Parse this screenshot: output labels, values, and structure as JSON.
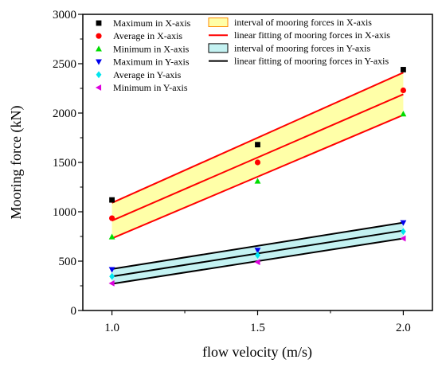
{
  "chart_data": {
    "type": "line",
    "xlabel": "flow velocity (m/s)",
    "ylabel": "Mooring force (kN)",
    "xlim": [
      0.9,
      2.1
    ],
    "ylim": [
      0,
      3000
    ],
    "x_ticks": [
      1.0,
      1.5,
      2.0
    ],
    "x_tick_labels": [
      "1.0",
      "1.5",
      "2.0"
    ],
    "y_ticks": [
      0,
      500,
      1000,
      1500,
      2000,
      2500,
      3000
    ],
    "y_tick_labels": [
      "0",
      "500",
      "1000",
      "1500",
      "2000",
      "2500",
      "3000"
    ],
    "grid": false,
    "legend_position": "top",
    "x": [
      1.0,
      1.5,
      2.0
    ],
    "series": [
      {
        "name": "Maximum in X-axis",
        "kind": "scatter",
        "marker": "square",
        "color": "#000000",
        "values": [
          1120,
          1680,
          2440
        ]
      },
      {
        "name": "Average in X-axis",
        "kind": "scatter",
        "marker": "circle",
        "color": "#ff0000",
        "values": [
          935,
          1500,
          2230
        ]
      },
      {
        "name": "Minimum in X-axis",
        "kind": "scatter",
        "marker": "triangle-up",
        "color": "#00dd00",
        "values": [
          745,
          1310,
          1990
        ]
      },
      {
        "name": "Maximum in Y-axis",
        "kind": "scatter",
        "marker": "triangle-down",
        "color": "#0000ee",
        "values": [
          415,
          610,
          890
        ]
      },
      {
        "name": "Average in Y-axis",
        "kind": "scatter",
        "marker": "diamond",
        "color": "#00e5ee",
        "values": [
          345,
          560,
          800
        ]
      },
      {
        "name": "Minimum in Y-axis",
        "kind": "scatter",
        "marker": "triangle-left",
        "color": "#dd00dd",
        "values": [
          275,
          490,
          730
        ]
      }
    ],
    "bands": [
      {
        "name": "interval of mooring forces in X-axis",
        "fill": "#ffffa8",
        "edge": "#ff8800",
        "upper": [
          1090,
          1750,
          2410
        ],
        "lower": [
          730,
          1360,
          1980
        ]
      },
      {
        "name": "interval of mooring forces in Y-axis",
        "fill": "#c4f2f2",
        "edge": "#000000",
        "upper": [
          420,
          660,
          890
        ],
        "lower": [
          270,
          500,
          730
        ]
      }
    ],
    "fit_lines": [
      {
        "name": "linear fitting of mooring forces in X-axis",
        "color": "#ff0000",
        "lines": [
          [
            1090,
            2410
          ],
          [
            910,
            2190
          ],
          [
            730,
            1980
          ]
        ]
      },
      {
        "name": "linear fitting of mooring forces in Y-axis",
        "color": "#000000",
        "lines": [
          [
            420,
            890
          ],
          [
            345,
            810
          ],
          [
            270,
            730
          ]
        ]
      }
    ]
  }
}
